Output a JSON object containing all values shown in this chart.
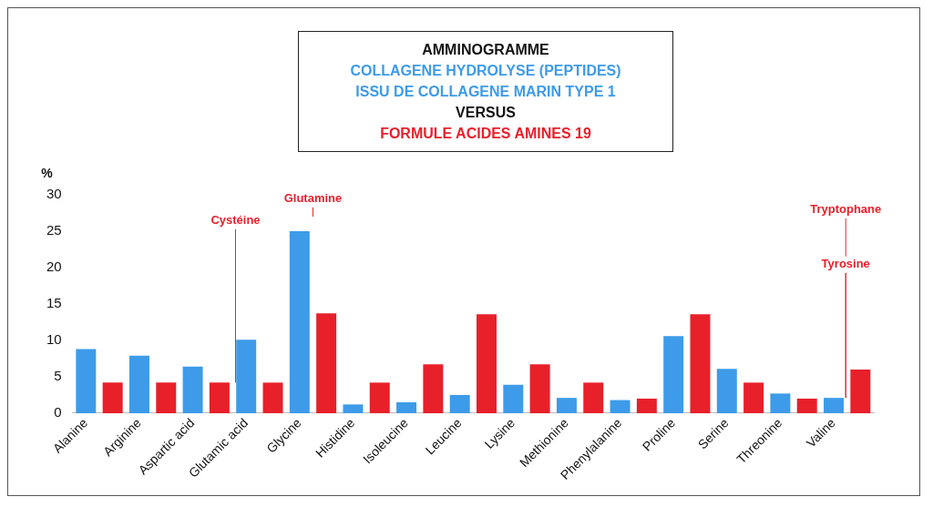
{
  "chart_data": {
    "type": "bar",
    "title": "AMMINOGRAMME",
    "subtitle": "VERSUS",
    "ylabel": "%",
    "categories": [
      "Alanine",
      null,
      "Arginine",
      null,
      "Aspartic acid",
      null,
      "Glutamic acid",
      null,
      "Glycine",
      null,
      "Histidine",
      null,
      "Isoleucine",
      null,
      "Leucine",
      null,
      "Lysine",
      null,
      "Methionine",
      null,
      "Phenylalanine",
      null,
      "Proline",
      null,
      "Serine",
      null,
      "Threonine",
      null,
      "Valine",
      null
    ],
    "series": [
      {
        "name": "COLLAGENE HYDROLYSE (PEPTIDES)\nISSU DE COLLAGENE MARIN TYPE 1",
        "color": "#3d9be9",
        "values": [
          8.8,
          null,
          7.9,
          null,
          6.4,
          null,
          10.1,
          null,
          25,
          null,
          1.2,
          null,
          1.5,
          null,
          2.5,
          null,
          3.9,
          null,
          2.1,
          null,
          1.8,
          null,
          10.6,
          null,
          6.1,
          null,
          2.7,
          null,
          2.1,
          null
        ]
      },
      {
        "name": "FORMULE ACIDES AMINES 19",
        "color": "#e8202a",
        "values": [
          null,
          4.2,
          null,
          4.2,
          null,
          4.2,
          null,
          4.2,
          null,
          13.7,
          null,
          4.2,
          null,
          6.7,
          null,
          13.6,
          null,
          6.7,
          null,
          4.2,
          null,
          2.0,
          null,
          13.6,
          null,
          4.2,
          null,
          2.0,
          null,
          6.0
        ]
      }
    ],
    "ylim": [
      0,
      30
    ],
    "yticks": [
      0,
      5,
      10,
      15,
      20,
      25,
      30
    ],
    "grid": false,
    "legend": false,
    "annotations": [
      "Cystéine",
      "Glutamine",
      "Tryptophane",
      "Tyrosine"
    ]
  }
}
